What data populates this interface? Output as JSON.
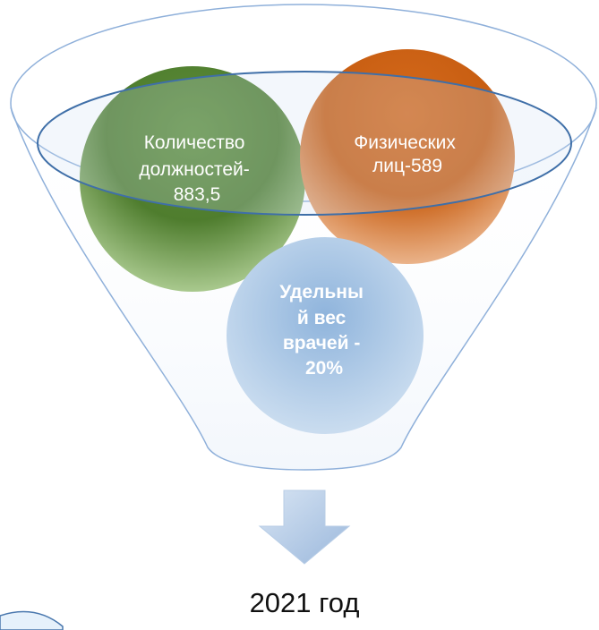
{
  "nodes": [
    {
      "lines": [
        "Количество",
        "должностей-",
        "883,5"
      ]
    },
    {
      "lines": [
        "Физических",
        "лиц-589"
      ]
    },
    {
      "lines": [
        "Удельны",
        "й вес",
        "врачей -",
        "20%"
      ]
    }
  ],
  "footer": {
    "label": "2021 год"
  }
}
